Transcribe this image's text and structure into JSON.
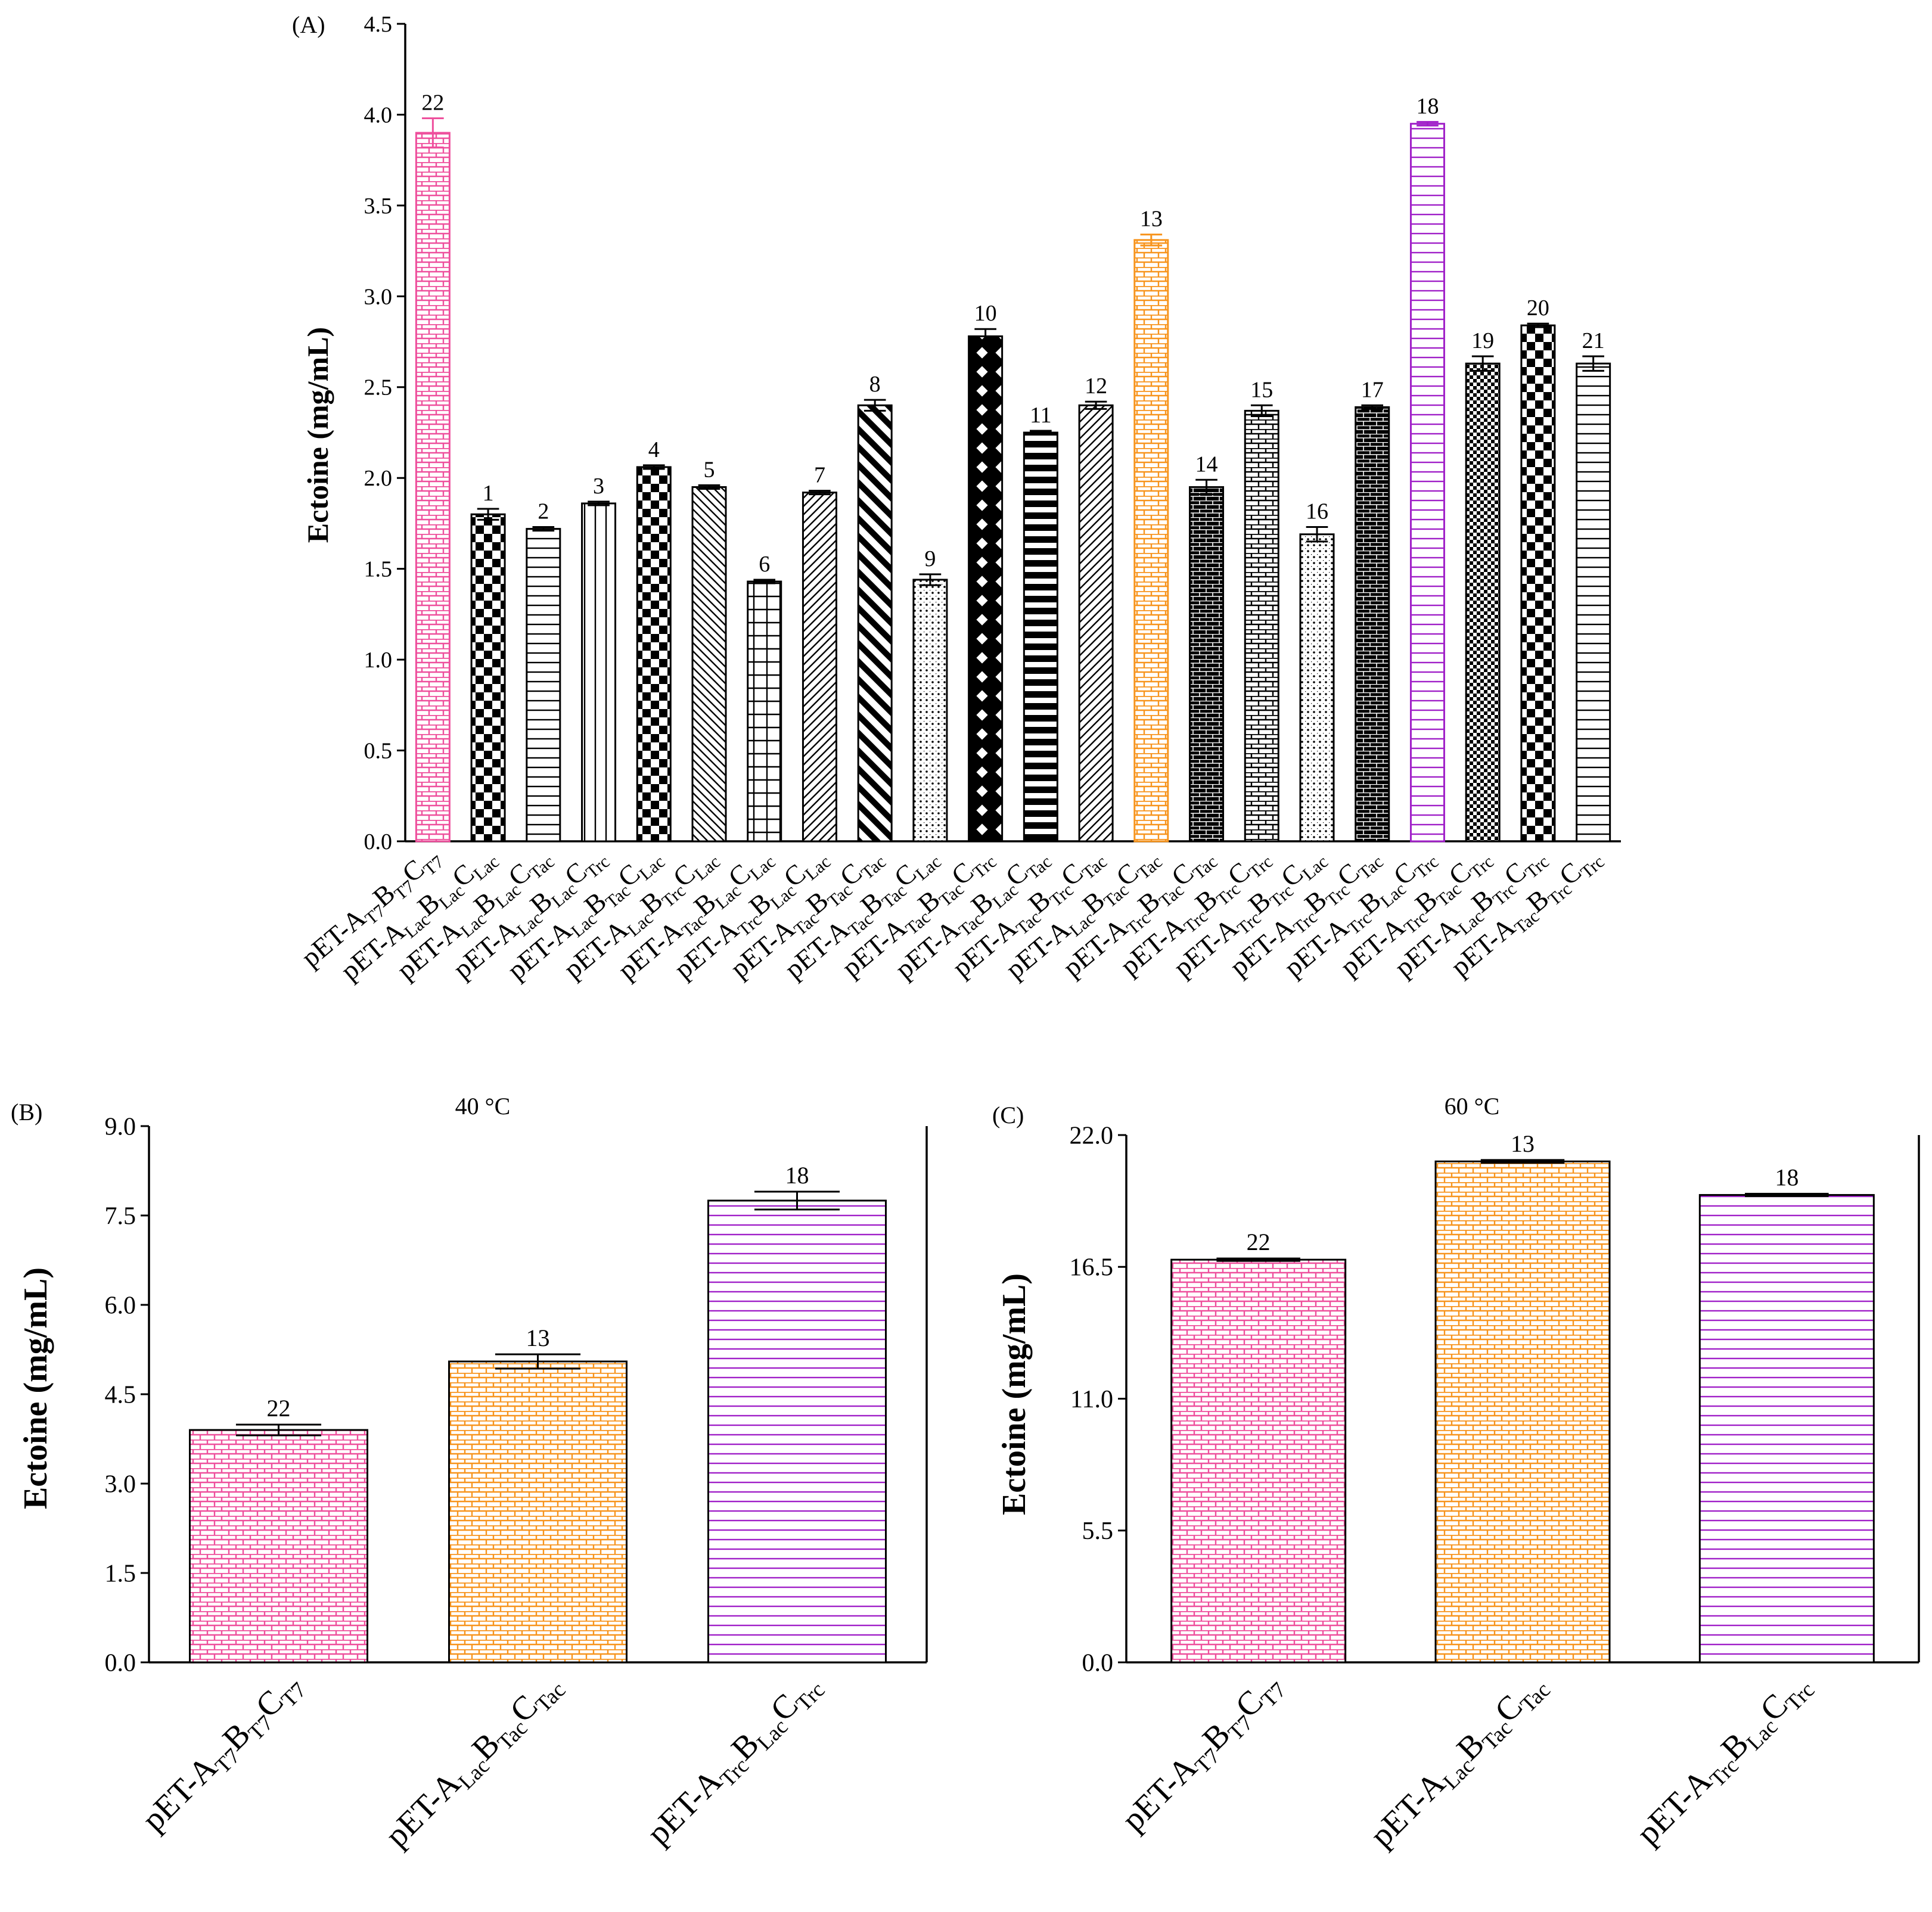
{
  "chart_data": [
    {
      "type": "bar",
      "panel_label": "(A)",
      "subtitle": "",
      "ylabel": "Ectoine (mg/mL)",
      "ylim": [
        0,
        4.5
      ],
      "yticks": [
        "0.0",
        "0.5",
        "1.0",
        "1.5",
        "2.0",
        "2.5",
        "3.0",
        "3.5",
        "4.0",
        "4.5"
      ],
      "bars": [
        {
          "id": "22",
          "label": [
            [
              "pET-A",
              ""
            ],
            [
              "T7",
              "s"
            ],
            [
              "B",
              ""
            ],
            [
              "T7",
              "s"
            ],
            [
              "C",
              ""
            ],
            [
              "T7",
              "s"
            ]
          ],
          "value": 3.9,
          "error": 0.08,
          "color": "#ee4f9c",
          "pattern": "brick"
        },
        {
          "id": "1",
          "label": [
            [
              "pET-A",
              ""
            ],
            [
              "Lac",
              "s"
            ],
            [
              "B",
              ""
            ],
            [
              "Lac",
              "s"
            ],
            [
              "C",
              ""
            ],
            [
              "Lac",
              "s"
            ]
          ],
          "value": 1.8,
          "error": 0.03,
          "color": "#000000",
          "pattern": "check"
        },
        {
          "id": "2",
          "label": [
            [
              "pET-A",
              ""
            ],
            [
              "Lac",
              "s"
            ],
            [
              "B",
              ""
            ],
            [
              "Lac",
              "s"
            ],
            [
              "C",
              ""
            ],
            [
              "Tac",
              "s"
            ]
          ],
          "value": 1.72,
          "error": 0.01,
          "color": "#000000",
          "pattern": "hlines"
        },
        {
          "id": "3",
          "label": [
            [
              "pET-A",
              ""
            ],
            [
              "Lac",
              "s"
            ],
            [
              "B",
              ""
            ],
            [
              "Lac",
              "s"
            ],
            [
              "C",
              ""
            ],
            [
              "Trc",
              "s"
            ]
          ],
          "value": 1.86,
          "error": 0.01,
          "color": "#000000",
          "pattern": "vlines"
        },
        {
          "id": "4",
          "label": [
            [
              "pET-A",
              ""
            ],
            [
              "Lac",
              "s"
            ],
            [
              "B",
              ""
            ],
            [
              "Tac",
              "s"
            ],
            [
              "C",
              ""
            ],
            [
              "Lac",
              "s"
            ]
          ],
          "value": 2.06,
          "error": 0.01,
          "color": "#000000",
          "pattern": "check"
        },
        {
          "id": "5",
          "label": [
            [
              "pET-A",
              ""
            ],
            [
              "Lac",
              "s"
            ],
            [
              "B",
              ""
            ],
            [
              "Trc",
              "s"
            ],
            [
              "C",
              ""
            ],
            [
              "Lac",
              "s"
            ]
          ],
          "value": 1.95,
          "error": 0.01,
          "color": "#000000",
          "pattern": "diagdown"
        },
        {
          "id": "6",
          "label": [
            [
              "pET-A",
              ""
            ],
            [
              "Tac",
              "s"
            ],
            [
              "B",
              ""
            ],
            [
              "Lac",
              "s"
            ],
            [
              "C",
              ""
            ],
            [
              "Lac",
              "s"
            ]
          ],
          "value": 1.43,
          "error": 0.01,
          "color": "#000000",
          "pattern": "grid"
        },
        {
          "id": "7",
          "label": [
            [
              "pET-A",
              ""
            ],
            [
              "Trc",
              "s"
            ],
            [
              "B",
              ""
            ],
            [
              "Lac",
              "s"
            ],
            [
              "C",
              ""
            ],
            [
              "Lac",
              "s"
            ]
          ],
          "value": 1.92,
          "error": 0.01,
          "color": "#000000",
          "pattern": "diagup"
        },
        {
          "id": "8",
          "label": [
            [
              "pET-A",
              ""
            ],
            [
              "Tac",
              "s"
            ],
            [
              "B",
              ""
            ],
            [
              "Tac",
              "s"
            ],
            [
              "C",
              ""
            ],
            [
              "Tac",
              "s"
            ]
          ],
          "value": 2.4,
          "error": 0.03,
          "color": "#000000",
          "pattern": "widediag"
        },
        {
          "id": "9",
          "label": [
            [
              "pET-A",
              ""
            ],
            [
              "Tac",
              "s"
            ],
            [
              "B",
              ""
            ],
            [
              "Tac",
              "s"
            ],
            [
              "C",
              ""
            ],
            [
              "Lac",
              "s"
            ]
          ],
          "value": 1.44,
          "error": 0.03,
          "color": "#000000",
          "pattern": "dots"
        },
        {
          "id": "10",
          "label": [
            [
              "pET-A",
              ""
            ],
            [
              "Tac",
              "s"
            ],
            [
              "B",
              ""
            ],
            [
              "Tac",
              "s"
            ],
            [
              "C",
              ""
            ],
            [
              "Trc",
              "s"
            ]
          ],
          "value": 2.78,
          "error": 0.04,
          "color": "#000000",
          "pattern": "diamond"
        },
        {
          "id": "11",
          "label": [
            [
              "pET-A",
              ""
            ],
            [
              "Tac",
              "s"
            ],
            [
              "B",
              ""
            ],
            [
              "Lac",
              "s"
            ],
            [
              "C",
              ""
            ],
            [
              "Tac",
              "s"
            ]
          ],
          "value": 2.25,
          "error": 0.01,
          "color": "#000000",
          "pattern": "boldh"
        },
        {
          "id": "12",
          "label": [
            [
              "pET-A",
              ""
            ],
            [
              "Tac",
              "s"
            ],
            [
              "B",
              ""
            ],
            [
              "Trc",
              "s"
            ],
            [
              "C",
              ""
            ],
            [
              "Tac",
              "s"
            ]
          ],
          "value": 2.4,
          "error": 0.02,
          "color": "#000000",
          "pattern": "diagup"
        },
        {
          "id": "13",
          "label": [
            [
              "pET-A",
              ""
            ],
            [
              "Lac",
              "s"
            ],
            [
              "B",
              ""
            ],
            [
              "Tac",
              "s"
            ],
            [
              "C",
              ""
            ],
            [
              "Tac",
              "s"
            ]
          ],
          "value": 3.31,
          "error": 0.03,
          "color": "#f7941d",
          "pattern": "brick"
        },
        {
          "id": "14",
          "label": [
            [
              "pET-A",
              ""
            ],
            [
              "Trc",
              "s"
            ],
            [
              "B",
              ""
            ],
            [
              "Tac",
              "s"
            ],
            [
              "C",
              ""
            ],
            [
              "Tac",
              "s"
            ]
          ],
          "value": 1.95,
          "error": 0.04,
          "color": "#000000",
          "pattern": "brickdark"
        },
        {
          "id": "15",
          "label": [
            [
              "pET-A",
              ""
            ],
            [
              "Trc",
              "s"
            ],
            [
              "B",
              ""
            ],
            [
              "Trc",
              "s"
            ],
            [
              "C",
              ""
            ],
            [
              "Trc",
              "s"
            ]
          ],
          "value": 2.37,
          "error": 0.03,
          "color": "#000000",
          "pattern": "brick"
        },
        {
          "id": "16",
          "label": [
            [
              "pET-A",
              ""
            ],
            [
              "Trc",
              "s"
            ],
            [
              "B",
              ""
            ],
            [
              "Trc",
              "s"
            ],
            [
              "C",
              ""
            ],
            [
              "Lac",
              "s"
            ]
          ],
          "value": 1.69,
          "error": 0.04,
          "color": "#000000",
          "pattern": "dots"
        },
        {
          "id": "17",
          "label": [
            [
              "pET-A",
              ""
            ],
            [
              "Trc",
              "s"
            ],
            [
              "B",
              ""
            ],
            [
              "Trc",
              "s"
            ],
            [
              "C",
              ""
            ],
            [
              "Tac",
              "s"
            ]
          ],
          "value": 2.39,
          "error": 0.01,
          "color": "#000000",
          "pattern": "brickdark"
        },
        {
          "id": "18",
          "label": [
            [
              "pET-A",
              ""
            ],
            [
              "Trc",
              "s"
            ],
            [
              "B",
              ""
            ],
            [
              "Lac",
              "s"
            ],
            [
              "C",
              ""
            ],
            [
              "Trc",
              "s"
            ]
          ],
          "value": 3.95,
          "error": 0.01,
          "color": "#a020c8",
          "pattern": "hlines"
        },
        {
          "id": "19",
          "label": [
            [
              "pET-A",
              ""
            ],
            [
              "Trc",
              "s"
            ],
            [
              "B",
              ""
            ],
            [
              "Tac",
              "s"
            ],
            [
              "C",
              ""
            ],
            [
              "Trc",
              "s"
            ]
          ],
          "value": 2.63,
          "error": 0.04,
          "color": "#000000",
          "pattern": "finecheck"
        },
        {
          "id": "20",
          "label": [
            [
              "pET-A",
              ""
            ],
            [
              "Lac",
              "s"
            ],
            [
              "B",
              ""
            ],
            [
              "Trc",
              "s"
            ],
            [
              "C",
              ""
            ],
            [
              "Trc",
              "s"
            ]
          ],
          "value": 2.84,
          "error": 0.01,
          "color": "#000000",
          "pattern": "check"
        },
        {
          "id": "21",
          "label": [
            [
              "pET-A",
              ""
            ],
            [
              "Tac",
              "s"
            ],
            [
              "B",
              ""
            ],
            [
              "Trc",
              "s"
            ],
            [
              "C",
              ""
            ],
            [
              "Trc",
              "s"
            ]
          ],
          "value": 2.63,
          "error": 0.04,
          "color": "#000000",
          "pattern": "hlines"
        }
      ]
    },
    {
      "type": "bar",
      "panel_label": "(B)",
      "subtitle": "40 °C",
      "ylabel": "Ectoine (mg/mL)",
      "ylim": [
        0,
        9.0
      ],
      "yticks": [
        "0.0",
        "1.5",
        "3.0",
        "4.5",
        "6.0",
        "7.5",
        "9.0"
      ],
      "bars": [
        {
          "id": "22",
          "label": [
            [
              "pET-A",
              ""
            ],
            [
              "T7",
              "s"
            ],
            [
              "B",
              ""
            ],
            [
              "T7",
              "s"
            ],
            [
              "C",
              ""
            ],
            [
              "T7",
              "s"
            ]
          ],
          "value": 3.9,
          "error": 0.09,
          "color": "#ee4f9c",
          "pattern": "brick"
        },
        {
          "id": "13",
          "label": [
            [
              "pET-A",
              ""
            ],
            [
              "Lac",
              "s"
            ],
            [
              "B",
              ""
            ],
            [
              "Tac",
              "s"
            ],
            [
              "C",
              ""
            ],
            [
              "Tac",
              "s"
            ]
          ],
          "value": 5.05,
          "error": 0.12,
          "color": "#f7941d",
          "pattern": "brick"
        },
        {
          "id": "18",
          "label": [
            [
              "pET-A",
              ""
            ],
            [
              "Trc",
              "s"
            ],
            [
              "B",
              ""
            ],
            [
              "Lac",
              "s"
            ],
            [
              "C",
              ""
            ],
            [
              "Trc",
              "s"
            ]
          ],
          "value": 7.75,
          "error": 0.15,
          "color": "#a020c8",
          "pattern": "hlines"
        }
      ]
    },
    {
      "type": "bar",
      "panel_label": "(C)",
      "subtitle": "60 °C",
      "ylabel": "Ectoine (mg/mL)",
      "ylim": [
        0,
        22.0
      ],
      "yticks": [
        "0.0",
        "5.5",
        "11.0",
        "16.5",
        "22.0"
      ],
      "bars": [
        {
          "id": "22",
          "label": [
            [
              "pET-A",
              ""
            ],
            [
              "T7",
              "s"
            ],
            [
              "B",
              ""
            ],
            [
              "T7",
              "s"
            ],
            [
              "C",
              ""
            ],
            [
              "T7",
              "s"
            ]
          ],
          "value": 16.8,
          "error": 0.05,
          "color": "#ee4f9c",
          "pattern": "brick"
        },
        {
          "id": "13",
          "label": [
            [
              "pET-A",
              ""
            ],
            [
              "Lac",
              "s"
            ],
            [
              "B",
              ""
            ],
            [
              "Tac",
              "s"
            ],
            [
              "C",
              ""
            ],
            [
              "Tac",
              "s"
            ]
          ],
          "value": 20.9,
          "error": 0.06,
          "color": "#f7941d",
          "pattern": "brick"
        },
        {
          "id": "18",
          "label": [
            [
              "pET-A",
              ""
            ],
            [
              "Trc",
              "s"
            ],
            [
              "B",
              ""
            ],
            [
              "Lac",
              "s"
            ],
            [
              "C",
              ""
            ],
            [
              "Trc",
              "s"
            ]
          ],
          "value": 19.5,
          "error": 0.05,
          "color": "#a020c8",
          "pattern": "hlines"
        }
      ]
    }
  ]
}
